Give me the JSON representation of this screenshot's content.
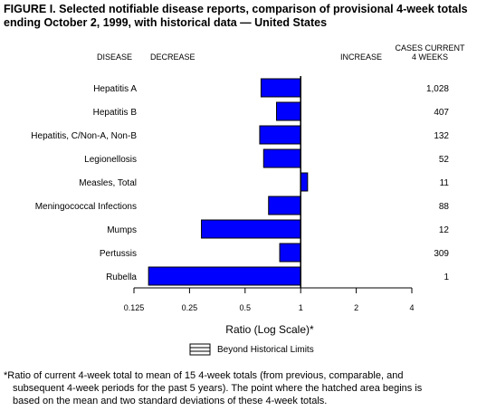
{
  "title_line1": "FIGURE I. Selected notifiable disease reports, comparison of provisional 4-week totals",
  "title_line2": "ending October 2, 1999, with historical data — United States",
  "headers": {
    "disease": "DISEASE",
    "decrease": "DECREASE",
    "increase": "INCREASE",
    "cases_line1": "CASES CURRENT",
    "cases_line2": "4 WEEKS"
  },
  "legend_label": "Beyond Historical Limits",
  "footnote_line1": "*Ratio of current 4-week total to mean of 15 4-week totals (from previous, comparable, and",
  "footnote_line2": "subsequent 4-week periods for the past 5 years). The point where the hatched area begins is",
  "footnote_line3": "based on the mean and two standard deviations of these 4-week totals.",
  "colors": {
    "bar": "#0000ff",
    "bar_outline": "#000000"
  },
  "chart_data": {
    "type": "bar",
    "orientation": "horizontal",
    "categories": [
      "Hepatitis A",
      "Hepatitis B",
      "Hepatitis, C/Non-A, Non-B",
      "Legionellosis",
      "Measles, Total",
      "Meningococcal Infections",
      "Mumps",
      "Pertussis",
      "Rubella"
    ],
    "values": [
      0.61,
      0.74,
      0.6,
      0.63,
      1.09,
      0.67,
      0.29,
      0.77,
      0.15
    ],
    "cases_current_4_weeks": [
      "1,028",
      "407",
      "132",
      "52",
      "11",
      "88",
      "12",
      "309",
      "1"
    ],
    "xlabel": "Ratio (Log Scale)*",
    "x_scale": "log",
    "x_ticks": [
      0.125,
      0.25,
      0.5,
      1,
      2,
      4
    ],
    "x_tick_labels": [
      "0.125",
      "0.25",
      "0.5",
      "1",
      "2",
      "4"
    ],
    "xlim": [
      0.125,
      4
    ],
    "baseline": 1,
    "grid": false,
    "legend_position": "bottom-center"
  }
}
